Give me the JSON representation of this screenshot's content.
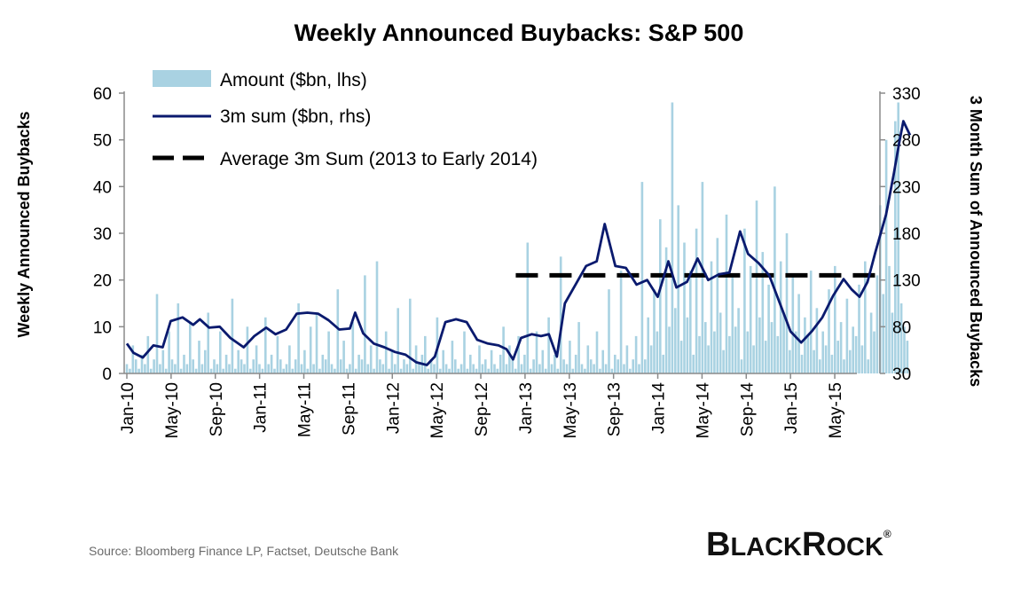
{
  "chart_data": {
    "type": "bar+line",
    "title": "Weekly Announced Buybacks: S&P 500",
    "ylabel_left": "Weekly Announced Buybacks",
    "ylabel_right": "3 Month Sum of Announced Buybacks",
    "ylim_left": [
      0,
      60
    ],
    "ylim_right": [
      30,
      330
    ],
    "yticks_left": [
      "0",
      "10",
      "20",
      "30",
      "40",
      "50",
      "60"
    ],
    "yticks_right": [
      "30",
      "80",
      "130",
      "180",
      "230",
      "280",
      "330"
    ],
    "xticks": [
      "Jan-10",
      "May-10",
      "Sep-10",
      "Jan-11",
      "May-11",
      "Sep-11",
      "Jan-12",
      "May-12",
      "Sep-12",
      "Jan-13",
      "May-13",
      "Sep-13",
      "Jan-14",
      "May-14",
      "Sep-14",
      "Jan-15",
      "May-15"
    ],
    "x_start": "2010-01",
    "x_end": "2015-06",
    "legend": {
      "amount": "Amount ($bn, lhs)",
      "sum": "3m sum ($bn, rhs)",
      "average": "Average 3m Sum (2013 to Early 2014)"
    },
    "series": [
      {
        "name": "Amount ($bn, lhs)",
        "kind": "bar",
        "axis": "left",
        "color": "#a9d2e2",
        "weekly_values": [
          2,
          1,
          6,
          3,
          1,
          4,
          2,
          8,
          1,
          3,
          17,
          2,
          5,
          1,
          9,
          3,
          2,
          15,
          1,
          4,
          2,
          11,
          3,
          1,
          7,
          2,
          5,
          13,
          1,
          3,
          2,
          9,
          1,
          4,
          2,
          16,
          1,
          5,
          3,
          2,
          10,
          1,
          3,
          6,
          2,
          1,
          12,
          2,
          4,
          1,
          8,
          3,
          1,
          2,
          6,
          1,
          3,
          15,
          2,
          5,
          1,
          10,
          2,
          13,
          1,
          4,
          3,
          9,
          2,
          1,
          18,
          3,
          7,
          1,
          2,
          11,
          1,
          4,
          3,
          21,
          2,
          6,
          1,
          24,
          3,
          2,
          9,
          1,
          5,
          2,
          14,
          1,
          3,
          2,
          16,
          1,
          6,
          2,
          4,
          8,
          1,
          3,
          2,
          12,
          1,
          5,
          2,
          1,
          7,
          3,
          1,
          2,
          9,
          1,
          4,
          2,
          1,
          6,
          2,
          3,
          1,
          5,
          2,
          1,
          4,
          10,
          2,
          6,
          3,
          1,
          8,
          2,
          4,
          28,
          1,
          3,
          9,
          2,
          5,
          1,
          12,
          2,
          4,
          1,
          25,
          3,
          2,
          7,
          1,
          4,
          11,
          2,
          1,
          6,
          3,
          2,
          9,
          1,
          5,
          2,
          18,
          1,
          4,
          3,
          22,
          2,
          6,
          1,
          3,
          8,
          2,
          41,
          3,
          12,
          6,
          18,
          9,
          33,
          4,
          27,
          10,
          58,
          14,
          36,
          7,
          28,
          12,
          22,
          4,
          31,
          8,
          41,
          11,
          6,
          24,
          9,
          29,
          13,
          5,
          34,
          8,
          21,
          10,
          14,
          3,
          31,
          9,
          23,
          6,
          37,
          12,
          26,
          7,
          19,
          11,
          40,
          8,
          24,
          13,
          30,
          5,
          21,
          9,
          17,
          4,
          12,
          8,
          22,
          5,
          14,
          3,
          9,
          6,
          18,
          4,
          23,
          7,
          11,
          3,
          16,
          5,
          10,
          8,
          19,
          6,
          24,
          3,
          13,
          9,
          21,
          36,
          17,
          50,
          23,
          13,
          54,
          58,
          15,
          10,
          7
        ]
      },
      {
        "name": "3m sum ($bn, rhs)",
        "kind": "line",
        "axis": "right",
        "color": "#0a1a6e",
        "points": [
          [
            2010.0,
            62
          ],
          [
            2010.05,
            52
          ],
          [
            2010.12,
            47
          ],
          [
            2010.2,
            60
          ],
          [
            2010.27,
            58
          ],
          [
            2010.33,
            86
          ],
          [
            2010.42,
            90
          ],
          [
            2010.5,
            82
          ],
          [
            2010.55,
            88
          ],
          [
            2010.62,
            79
          ],
          [
            2010.7,
            80
          ],
          [
            2010.78,
            68
          ],
          [
            2010.88,
            58
          ],
          [
            2010.96,
            70
          ],
          [
            2011.05,
            79
          ],
          [
            2011.12,
            72
          ],
          [
            2011.2,
            77
          ],
          [
            2011.28,
            94
          ],
          [
            2011.36,
            95
          ],
          [
            2011.44,
            94
          ],
          [
            2011.52,
            87
          ],
          [
            2011.6,
            77
          ],
          [
            2011.68,
            78
          ],
          [
            2011.72,
            95
          ],
          [
            2011.78,
            73
          ],
          [
            2011.86,
            62
          ],
          [
            2011.94,
            58
          ],
          [
            2012.02,
            53
          ],
          [
            2012.1,
            50
          ],
          [
            2012.18,
            42
          ],
          [
            2012.26,
            39
          ],
          [
            2012.32,
            48
          ],
          [
            2012.4,
            85
          ],
          [
            2012.48,
            88
          ],
          [
            2012.56,
            85
          ],
          [
            2012.64,
            66
          ],
          [
            2012.72,
            62
          ],
          [
            2012.8,
            60
          ],
          [
            2012.86,
            56
          ],
          [
            2012.91,
            45
          ],
          [
            2012.97,
            68
          ],
          [
            2013.05,
            72
          ],
          [
            2013.12,
            70
          ],
          [
            2013.18,
            72
          ],
          [
            2013.24,
            48
          ],
          [
            2013.3,
            105
          ],
          [
            2013.38,
            125
          ],
          [
            2013.46,
            145
          ],
          [
            2013.54,
            150
          ],
          [
            2013.6,
            190
          ],
          [
            2013.68,
            145
          ],
          [
            2013.76,
            143
          ],
          [
            2013.84,
            125
          ],
          [
            2013.92,
            130
          ],
          [
            2014.0,
            112
          ],
          [
            2014.08,
            150
          ],
          [
            2014.14,
            122
          ],
          [
            2014.22,
            128
          ],
          [
            2014.3,
            153
          ],
          [
            2014.38,
            130
          ],
          [
            2014.46,
            136
          ],
          [
            2014.54,
            138
          ],
          [
            2014.62,
            182
          ],
          [
            2014.68,
            158
          ],
          [
            2014.76,
            148
          ],
          [
            2014.84,
            135
          ],
          [
            2014.92,
            105
          ],
          [
            2015.0,
            75
          ],
          [
            2015.08,
            63
          ],
          [
            2015.16,
            75
          ],
          [
            2015.24,
            90
          ],
          [
            2015.32,
            113
          ],
          [
            2015.4,
            131
          ],
          [
            2015.46,
            120
          ],
          [
            2015.52,
            112
          ],
          [
            2015.58,
            128
          ],
          [
            2015.64,
            160
          ],
          [
            2015.68,
            180
          ],
          [
            2015.72,
            200
          ],
          [
            2015.78,
            245
          ],
          [
            2015.82,
            278
          ],
          [
            2015.85,
            300
          ],
          [
            2015.9,
            285
          ]
        ]
      },
      {
        "name": "Average 3m Sum (2013 to Early 2014)",
        "kind": "dashed-line",
        "axis": "right",
        "color": "#000000",
        "x_range": [
          2012.93,
          2015.65
        ],
        "value": 135
      }
    ]
  },
  "source": "Source: Bloomberg Finance LP, Factset, Deutsche Bank",
  "logo": {
    "text_big_1": "B",
    "text_small_1": "LACK",
    "text_big_2": "R",
    "text_small_2": "OCK",
    "mark": "®"
  }
}
